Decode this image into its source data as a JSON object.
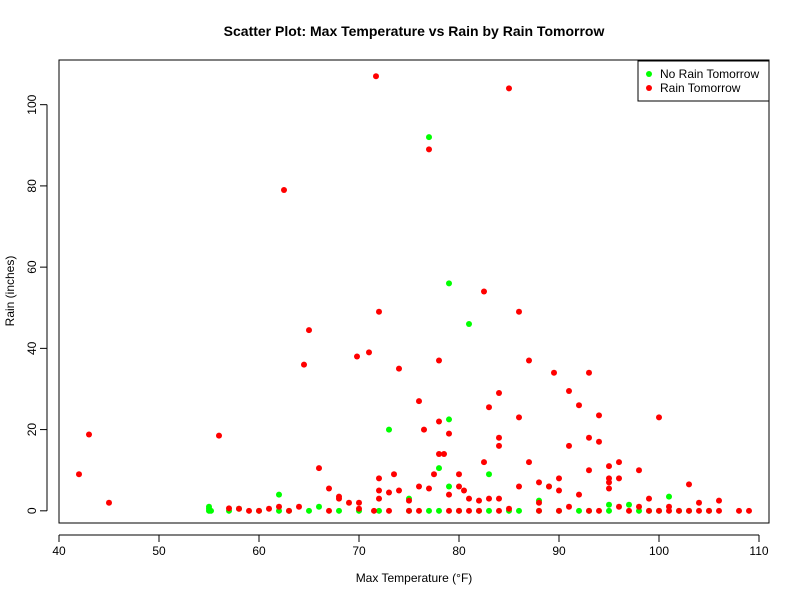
{
  "chart_data": {
    "type": "scatter",
    "title": "Scatter Plot: Max Temperature vs Rain by Rain Tomorrow",
    "xlabel": "Max Temperature (°F)",
    "ylabel": "Rain (inches)",
    "xlim": [
      40,
      111
    ],
    "ylim": [
      -3,
      111
    ],
    "xticks": [
      40,
      50,
      60,
      70,
      80,
      90,
      100,
      110
    ],
    "yticks": [
      0,
      20,
      40,
      60,
      80,
      100
    ],
    "grid": false,
    "legend_position": "top-right",
    "series": [
      {
        "name": "No Rain Tomorrow",
        "color": "#00ff00",
        "points": [
          [
            55,
            0
          ],
          [
            55,
            0.5
          ],
          [
            55,
            1
          ],
          [
            55.2,
            0
          ],
          [
            57,
            0
          ],
          [
            58,
            0.5
          ],
          [
            60,
            0
          ],
          [
            62,
            0
          ],
          [
            62,
            4
          ],
          [
            63,
            0
          ],
          [
            65,
            0
          ],
          [
            66,
            1
          ],
          [
            68,
            0
          ],
          [
            70,
            0
          ],
          [
            72,
            0
          ],
          [
            73,
            20
          ],
          [
            75,
            0
          ],
          [
            75,
            3
          ],
          [
            77,
            0
          ],
          [
            77,
            92
          ],
          [
            78,
            10.5
          ],
          [
            78,
            0
          ],
          [
            79,
            56
          ],
          [
            79,
            22.5
          ],
          [
            79,
            6
          ],
          [
            80,
            0
          ],
          [
            81,
            46
          ],
          [
            82,
            0
          ],
          [
            83,
            9
          ],
          [
            83,
            0
          ],
          [
            85,
            0
          ],
          [
            86,
            0
          ],
          [
            88,
            2.5
          ],
          [
            88,
            0
          ],
          [
            89,
            6
          ],
          [
            90,
            0
          ],
          [
            92,
            0
          ],
          [
            93,
            0
          ],
          [
            95,
            1.5
          ],
          [
            95,
            0
          ],
          [
            97,
            1.5
          ],
          [
            98,
            0
          ],
          [
            99,
            0
          ],
          [
            100,
            0
          ],
          [
            101,
            3.5
          ],
          [
            102,
            0
          ],
          [
            103,
            0
          ],
          [
            105,
            0
          ]
        ]
      },
      {
        "name": "Rain Tomorrow",
        "color": "#ff0000",
        "points": [
          [
            42,
            9
          ],
          [
            43,
            18.8
          ],
          [
            45,
            2
          ],
          [
            56,
            18.5
          ],
          [
            57,
            0.6
          ],
          [
            58,
            0.5
          ],
          [
            59,
            0
          ],
          [
            60,
            0
          ],
          [
            61,
            0.5
          ],
          [
            62,
            1
          ],
          [
            62.5,
            79
          ],
          [
            63,
            0
          ],
          [
            64,
            1
          ],
          [
            64.5,
            36
          ],
          [
            65,
            44.5
          ],
          [
            66,
            10.5
          ],
          [
            67,
            5.5
          ],
          [
            67,
            0
          ],
          [
            68,
            3
          ],
          [
            68,
            3.5
          ],
          [
            69,
            2
          ],
          [
            70,
            0.5
          ],
          [
            70,
            2
          ],
          [
            69.8,
            38
          ],
          [
            71,
            39
          ],
          [
            71.5,
            0
          ],
          [
            71.7,
            107
          ],
          [
            72,
            49
          ],
          [
            72,
            5
          ],
          [
            72,
            3
          ],
          [
            72,
            8
          ],
          [
            73,
            0
          ],
          [
            73,
            4.5
          ],
          [
            73.5,
            9
          ],
          [
            74,
            35
          ],
          [
            74,
            5
          ],
          [
            75,
            0
          ],
          [
            75,
            2.5
          ],
          [
            76,
            27
          ],
          [
            76,
            6
          ],
          [
            76,
            0
          ],
          [
            76.5,
            20
          ],
          [
            77,
            89
          ],
          [
            77,
            5.5
          ],
          [
            77.5,
            9
          ],
          [
            78,
            37
          ],
          [
            78,
            22
          ],
          [
            78,
            14
          ],
          [
            78.5,
            14
          ],
          [
            79,
            19
          ],
          [
            79,
            4
          ],
          [
            79,
            0
          ],
          [
            80,
            9
          ],
          [
            80,
            6
          ],
          [
            80,
            0
          ],
          [
            80.5,
            5
          ],
          [
            81,
            0
          ],
          [
            81,
            3
          ],
          [
            82,
            2.5
          ],
          [
            82,
            0
          ],
          [
            82.5,
            54
          ],
          [
            82.5,
            12
          ],
          [
            83,
            25.5
          ],
          [
            83,
            3
          ],
          [
            84,
            29
          ],
          [
            84,
            18
          ],
          [
            84,
            16
          ],
          [
            84,
            3
          ],
          [
            84,
            0
          ],
          [
            85,
            104
          ],
          [
            85,
            0.5
          ],
          [
            86,
            49
          ],
          [
            86,
            23
          ],
          [
            86,
            6
          ],
          [
            87,
            37
          ],
          [
            87,
            12
          ],
          [
            88,
            7
          ],
          [
            88,
            2
          ],
          [
            88,
            0
          ],
          [
            89,
            6
          ],
          [
            89.5,
            34
          ],
          [
            90,
            8
          ],
          [
            90,
            5
          ],
          [
            90,
            0
          ],
          [
            91,
            29.5
          ],
          [
            91,
            16
          ],
          [
            91,
            1
          ],
          [
            92,
            26
          ],
          [
            92,
            4
          ],
          [
            93,
            34
          ],
          [
            93,
            18
          ],
          [
            93,
            10
          ],
          [
            93,
            0
          ],
          [
            94,
            23.5
          ],
          [
            94,
            17
          ],
          [
            94,
            0
          ],
          [
            95,
            11
          ],
          [
            95,
            8
          ],
          [
            95,
            7
          ],
          [
            95,
            5.5
          ],
          [
            96,
            12
          ],
          [
            96,
            8
          ],
          [
            96,
            1
          ],
          [
            97,
            0
          ],
          [
            98,
            10
          ],
          [
            98,
            1
          ],
          [
            99,
            3
          ],
          [
            99,
            0
          ],
          [
            100,
            23
          ],
          [
            100,
            0
          ],
          [
            101,
            1
          ],
          [
            101,
            0
          ],
          [
            102,
            0
          ],
          [
            103,
            6.5
          ],
          [
            103,
            0
          ],
          [
            104,
            2
          ],
          [
            104,
            0
          ],
          [
            105,
            0
          ],
          [
            106,
            2.5
          ],
          [
            106,
            0
          ],
          [
            108,
            0
          ],
          [
            109,
            0
          ]
        ]
      }
    ]
  }
}
